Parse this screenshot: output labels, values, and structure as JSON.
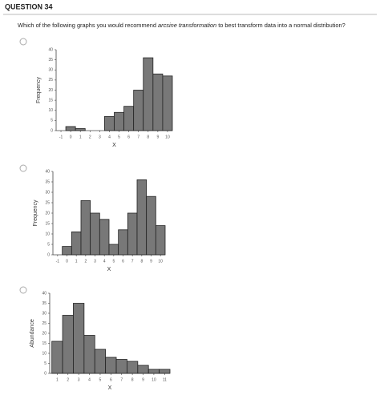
{
  "header": {
    "title": "QUESTION 34"
  },
  "question": {
    "before": "Which of the following graphs you would recommend ",
    "emphasis": "arcsine transformation",
    "after": " to best transform data into a normal distribution?"
  },
  "chart_data": [
    {
      "type": "histogram",
      "xlabel": "X",
      "ylabel": "Frequency",
      "color": "#787878",
      "bins": [
        -0.5,
        0.5,
        1.5,
        2.5,
        3.5,
        4.5,
        5.5,
        6.5,
        7.5,
        8.5,
        9.5,
        10.5
      ],
      "values": [
        2,
        1,
        0,
        0,
        7,
        9,
        12,
        20,
        36,
        28,
        27
      ],
      "xlim": [
        -1.5,
        10.5
      ],
      "xticks": [
        -1,
        0,
        1,
        2,
        3,
        4,
        5,
        6,
        7,
        8,
        9,
        10
      ],
      "ylim": [
        0,
        40
      ],
      "yticks": [
        0,
        5,
        10,
        15,
        20,
        25,
        30,
        35,
        40
      ]
    },
    {
      "type": "histogram",
      "xlabel": "X",
      "ylabel": "Frequency",
      "color": "#787878",
      "bins": [
        -0.5,
        0.5,
        1.5,
        2.5,
        3.5,
        4.5,
        5.5,
        6.5,
        7.5,
        8.5,
        9.5,
        10.5
      ],
      "values": [
        4,
        11,
        26,
        20,
        17,
        5,
        12,
        20,
        36,
        28,
        14
      ],
      "xlim": [
        -1.5,
        10.5
      ],
      "xticks": [
        -1,
        0,
        1,
        2,
        3,
        4,
        5,
        6,
        7,
        8,
        9,
        10
      ],
      "ylim": [
        0,
        40
      ],
      "yticks": [
        0,
        5,
        10,
        15,
        20,
        25,
        30,
        35,
        40
      ]
    },
    {
      "type": "histogram",
      "xlabel": "X",
      "ylabel": "Abundance",
      "color": "#787878",
      "bins": [
        0.5,
        1.5,
        2.5,
        3.5,
        4.5,
        5.5,
        6.5,
        7.5,
        8.5,
        9.5,
        10.5,
        11.5
      ],
      "values": [
        16,
        29,
        35,
        19,
        12,
        8,
        7,
        6,
        4,
        2,
        2
      ],
      "xlim": [
        0.3,
        11.5
      ],
      "xticks": [
        1,
        2,
        3,
        4,
        5,
        6,
        7,
        8,
        9,
        10,
        11
      ],
      "ylim": [
        0,
        40
      ],
      "yticks": [
        0,
        5,
        10,
        15,
        20,
        25,
        30,
        35,
        40
      ]
    }
  ]
}
